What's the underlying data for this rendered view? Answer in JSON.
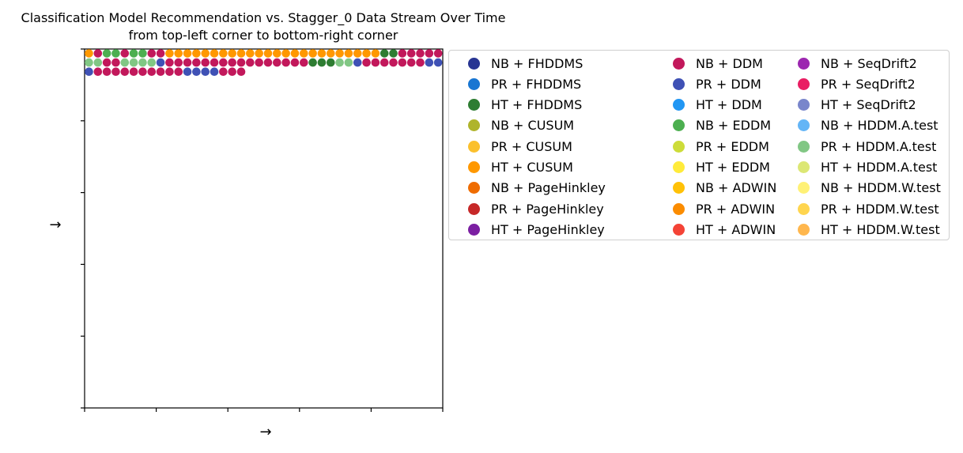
{
  "title_lines": [
    "Classification Model Recommendation vs. Stagger_0 Data Stream Over Time",
    "from top-left corner to bottom-right corner"
  ],
  "xlabel": "→",
  "ylabel": "→",
  "legend": {
    "columns": [
      [
        {
          "label": "NB + FHDDMS",
          "color": "#283593"
        },
        {
          "label": "PR + FHDDMS",
          "color": "#1976D2"
        },
        {
          "label": "HT + FHDDMS",
          "color": "#2E7D32"
        },
        {
          "label": "NB + CUSUM",
          "color": "#AFB42B"
        },
        {
          "label": "PR + CUSUM",
          "color": "#FBC02D"
        },
        {
          "label": "HT + CUSUM",
          "color": "#FF9800"
        },
        {
          "label": "NB + PageHinkley",
          "color": "#EF6C00"
        },
        {
          "label": "PR + PageHinkley",
          "color": "#C62828"
        },
        {
          "label": "HT + PageHinkley",
          "color": "#7B1FA2"
        }
      ],
      [
        {
          "label": "NB + DDM",
          "color": "#C2185B"
        },
        {
          "label": "PR + DDM",
          "color": "#3F51B5"
        },
        {
          "label": "HT + DDM",
          "color": "#2196F3"
        },
        {
          "label": "NB + EDDM",
          "color": "#4CAF50"
        },
        {
          "label": "PR + EDDM",
          "color": "#CDDC39"
        },
        {
          "label": "HT + EDDM",
          "color": "#FFEB3B"
        },
        {
          "label": "NB + ADWIN",
          "color": "#FFC107"
        },
        {
          "label": "PR + ADWIN",
          "color": "#FB8C00"
        },
        {
          "label": "HT + ADWIN",
          "color": "#F44336"
        }
      ],
      [
        {
          "label": "NB + SeqDrift2",
          "color": "#9C27B0"
        },
        {
          "label": "PR + SeqDrift2",
          "color": "#E91E63"
        },
        {
          "label": "HT + SeqDrift2",
          "color": "#7986CB"
        },
        {
          "label": "NB + HDDM.A.test",
          "color": "#64B5F6"
        },
        {
          "label": "PR + HDDM.A.test",
          "color": "#81C784"
        },
        {
          "label": "HT + HDDM.A.test",
          "color": "#DCE775"
        },
        {
          "label": "NB + HDDM.W.test",
          "color": "#FFF176"
        },
        {
          "label": "PR + HDDM.W.test",
          "color": "#FFD54F"
        },
        {
          "label": "HT + HDDM.W.test",
          "color": "#FFB74D"
        }
      ]
    ]
  },
  "chart_data": {
    "type": "scatter",
    "title": "Classification Model Recommendation vs. Stagger_0 Data Stream Over Time\nfrom top-left corner to bottom-right corner",
    "xlabel": "→",
    "ylabel": "→",
    "grid": false,
    "legend_position": "outside-right",
    "description": "Grid of recommendation markers read left-to-right, top-to-bottom; one marker per time step, colored by recommended model + detector.",
    "grid_columns": 40,
    "rows": [
      [
        "HT + CUSUM",
        "NB + DDM",
        "NB + EDDM",
        "NB + EDDM",
        "NB + DDM",
        "NB + EDDM",
        "NB + EDDM",
        "NB + DDM",
        "NB + DDM",
        "HT + CUSUM",
        "HT + CUSUM",
        "HT + CUSUM",
        "HT + CUSUM",
        "HT + CUSUM",
        "HT + CUSUM",
        "HT + CUSUM",
        "HT + CUSUM",
        "HT + CUSUM",
        "HT + CUSUM",
        "HT + CUSUM",
        "HT + CUSUM",
        "HT + CUSUM",
        "HT + CUSUM",
        "HT + CUSUM",
        "HT + CUSUM",
        "HT + CUSUM",
        "HT + CUSUM",
        "HT + CUSUM",
        "HT + CUSUM",
        "HT + CUSUM",
        "HT + CUSUM",
        "HT + CUSUM",
        "HT + CUSUM",
        "HT + FHDDMS",
        "HT + FHDDMS",
        "NB + DDM",
        "NB + DDM",
        "NB + DDM",
        "NB + DDM",
        "NB + DDM"
      ],
      [
        "PR + HDDM.A.test",
        "PR + HDDM.A.test",
        "NB + DDM",
        "NB + DDM",
        "PR + HDDM.A.test",
        "PR + HDDM.A.test",
        "PR + HDDM.A.test",
        "PR + HDDM.A.test",
        "PR + DDM",
        "NB + DDM",
        "NB + DDM",
        "NB + DDM",
        "NB + DDM",
        "NB + DDM",
        "NB + DDM",
        "NB + DDM",
        "NB + DDM",
        "NB + DDM",
        "NB + DDM",
        "NB + DDM",
        "NB + DDM",
        "NB + DDM",
        "NB + DDM",
        "NB + DDM",
        "NB + DDM",
        "HT + FHDDMS",
        "HT + FHDDMS",
        "HT + FHDDMS",
        "PR + HDDM.A.test",
        "PR + HDDM.A.test",
        "PR + DDM",
        "NB + DDM",
        "NB + DDM",
        "NB + DDM",
        "NB + DDM",
        "NB + DDM",
        "NB + DDM",
        "NB + DDM",
        "PR + DDM",
        "PR + DDM"
      ],
      [
        "PR + DDM",
        "NB + DDM",
        "NB + DDM",
        "NB + DDM",
        "NB + DDM",
        "NB + DDM",
        "NB + DDM",
        "NB + DDM",
        "NB + DDM",
        "NB + DDM",
        "NB + DDM",
        "PR + DDM",
        "PR + DDM",
        "PR + DDM",
        "PR + DDM",
        "NB + DDM",
        "NB + DDM",
        "NB + DDM"
      ]
    ]
  }
}
